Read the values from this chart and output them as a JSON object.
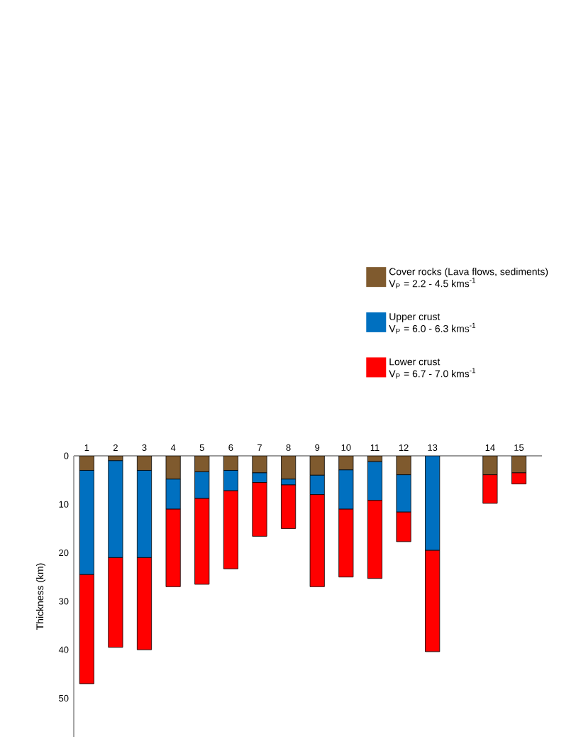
{
  "chart_data": {
    "type": "bar",
    "stacked": true,
    "ylabel": "Thickness (km)",
    "categories": [
      "1",
      "2",
      "3",
      "4",
      "5",
      "6",
      "7",
      "8",
      "9",
      "10",
      "11",
      "12",
      "13",
      null,
      "14",
      "15"
    ],
    "series": [
      {
        "name": "Cover rocks (Lava flows, sediments)",
        "color": "#7f5a2e",
        "values": [
          3,
          1,
          3,
          4.8,
          3.3,
          3,
          3.5,
          4.8,
          4,
          2.9,
          1.2,
          3.9,
          null,
          null,
          3.9,
          3.5
        ]
      },
      {
        "name": "Upper crust",
        "color": "#0070c0",
        "values": [
          21.5,
          20,
          18,
          6.2,
          5.5,
          4.2,
          2,
          1.2,
          4,
          8.1,
          8,
          7.7,
          19.5,
          null,
          null,
          null
        ]
      },
      {
        "name": "Lower crust",
        "color": "#ff0000",
        "values": [
          22.5,
          18.5,
          19,
          16,
          17.7,
          16.1,
          11.1,
          9,
          19,
          14,
          16.1,
          6.1,
          20.9,
          null,
          5.9,
          2.3
        ]
      }
    ],
    "annotations": [
      "V$_{P}$ = 2.2 - 4.5 kms$^{-1}$",
      "V$_{P}$ = 6.0 - 6.3 kms$^{-1}$",
      "V$_{P}$ = 6.7 - 7.0 kms$^{-1}$"
    ],
    "ylim": [
      58,
      0
    ],
    "yticks": [
      0,
      10,
      20,
      30,
      40,
      50
    ],
    "legend": "top right",
    "grid": false
  }
}
